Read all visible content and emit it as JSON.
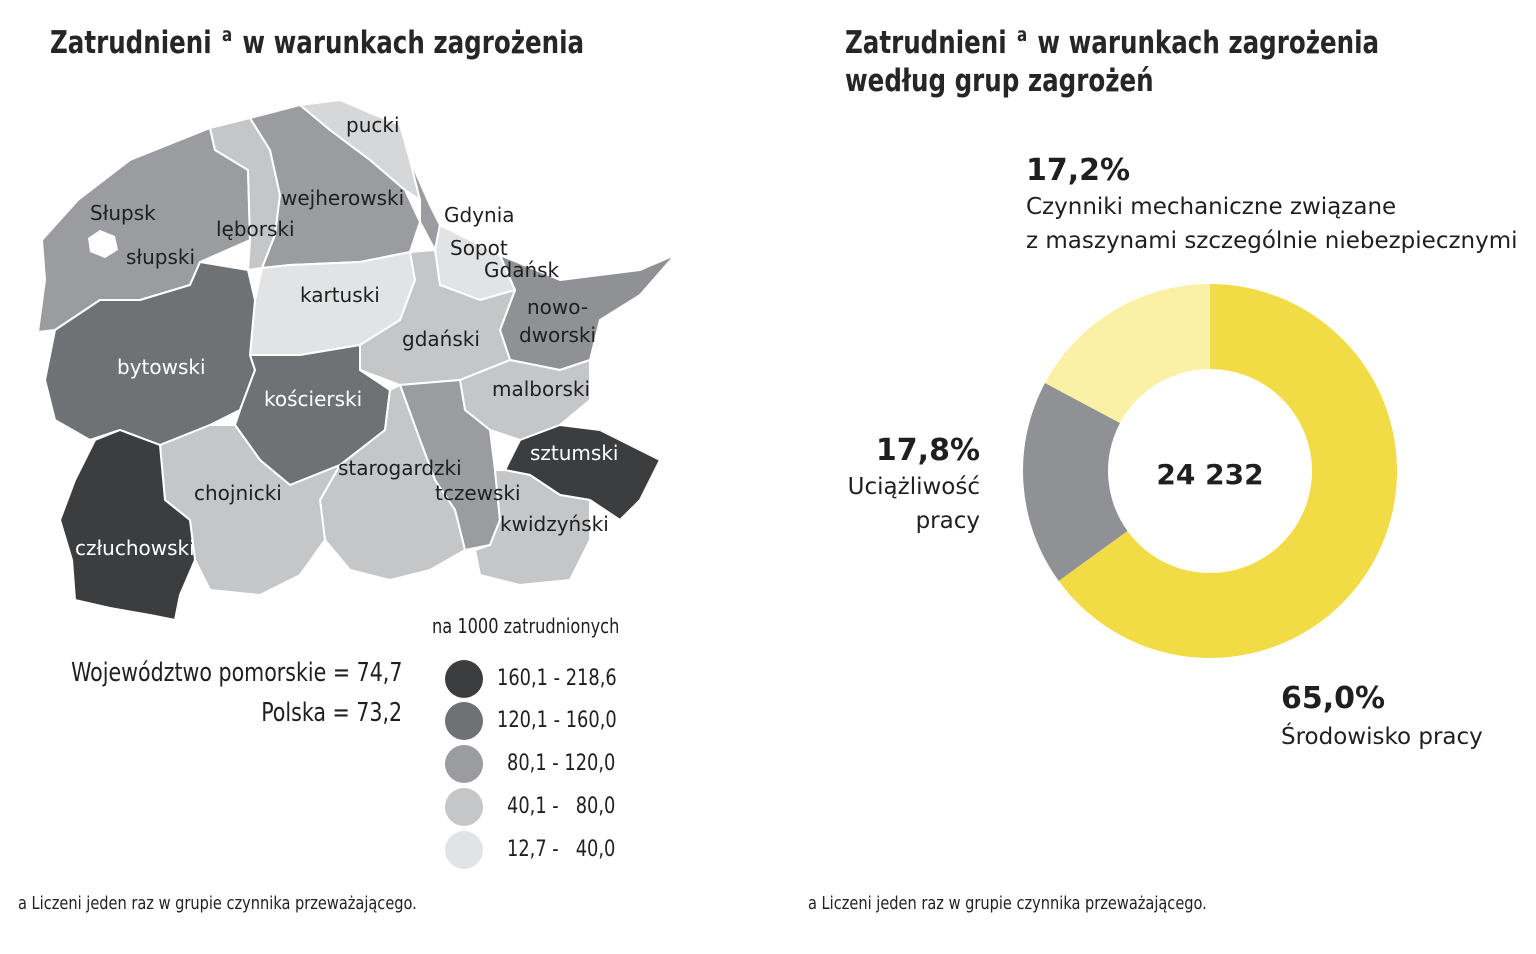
{
  "left": {
    "title_main": "Zatrudnieni",
    "title_sup": "a",
    "title_rest": "w warunkach zagrożenia",
    "stats": {
      "wojewodztwo": "Województwo pomorskie = 74,7",
      "polska": "Polska = 73,2"
    },
    "legend": {
      "title": "na 1000 zatrudnionych",
      "items": [
        {
          "label": "160,1 - 218,6",
          "color": "#3b3d3f"
        },
        {
          "label": "120,1 - 160,0",
          "color": "#6e7274"
        },
        {
          "label": "80,1 - 120,0",
          "color": "#9a9c9f"
        },
        {
          "label": "40,1 -   80,0",
          "color": "#c4c6c8"
        },
        {
          "label": "12,7 -   40,0",
          "color": "#e2e3e4"
        }
      ]
    },
    "map_labels": {
      "pucki": "pucki",
      "slupsk": "Słupsk",
      "wejherowski": "wejherowski",
      "gdynia": "Gdynia",
      "lęborski": "lęborski",
      "slupski": "słupski",
      "sopot": "Sopot",
      "gdansk": "Gdańsk",
      "kartuski": "kartuski",
      "nowodworski_1": "nowo-",
      "nowodworski_2": "dworski",
      "gdanski": "gdański",
      "bytowski": "bytowski",
      "malborski": "malborski",
      "koscierski": "kościerski",
      "sztumski": "sztumski",
      "starogardzki": "starogardzki",
      "chojnicki": "chojnicki",
      "tczewski": "tczewski",
      "kwidzynski": "kwidzyński",
      "czluchowski": "człuchowski"
    },
    "footnote": "a Liczeni jeden raz w grupie czynnika przeważającego."
  },
  "right": {
    "title_main": "Zatrudnieni",
    "title_sup": "a",
    "title_rest": "w warunkach zagrożenia",
    "title_line2": "według grup zagrożeń",
    "footnote": "a Liczeni jeden raz w grupie czynnika przeważającego."
  },
  "chart_data": {
    "type": "pie",
    "donut": true,
    "title": "Zatrudnieni a w warunkach zagrożenia według grup zagrożeń",
    "total_label": "24 232",
    "slices": [
      {
        "pct_label": "65,0%",
        "value": 65.0,
        "lines": [
          "Środowisko pracy"
        ],
        "color": "#f2dc45"
      },
      {
        "pct_label": "17,8%",
        "value": 17.8,
        "lines": [
          "Uciążliwość",
          "pracy"
        ],
        "color": "#8f9194"
      },
      {
        "pct_label": "17,2%",
        "value": 17.2,
        "lines": [
          "Czynniki mechaniczne związane",
          "z maszynami szczególnie niebezpiecznymi"
        ],
        "color": "#faf0a6"
      }
    ]
  }
}
